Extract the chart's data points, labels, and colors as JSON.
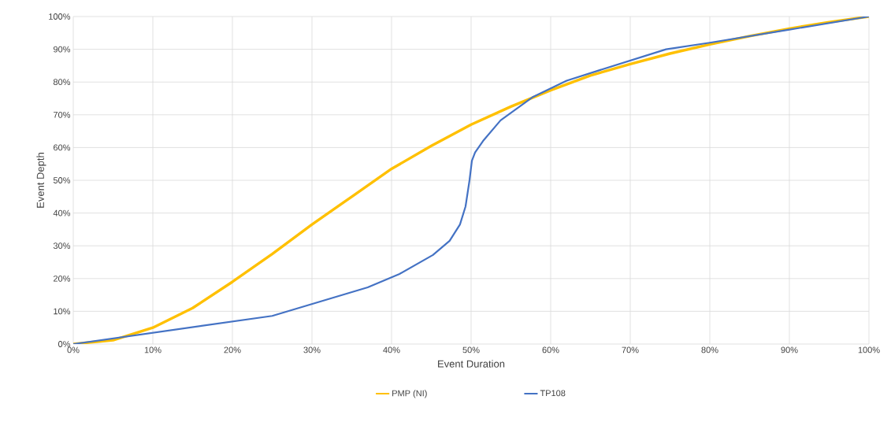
{
  "chart_data": {
    "type": "line",
    "xlabel": "Event Duration",
    "ylabel": "Event Depth",
    "xlim": [
      0,
      100
    ],
    "ylim": [
      0,
      100
    ],
    "xticks": [
      {
        "value": 0,
        "label": "0%"
      },
      {
        "value": 10,
        "label": "10%"
      },
      {
        "value": 20,
        "label": "20%"
      },
      {
        "value": 30,
        "label": "30%"
      },
      {
        "value": 40,
        "label": "40%"
      },
      {
        "value": 50,
        "label": "50%"
      },
      {
        "value": 60,
        "label": "60%"
      },
      {
        "value": 70,
        "label": "70%"
      },
      {
        "value": 80,
        "label": "80%"
      },
      {
        "value": 90,
        "label": "90%"
      },
      {
        "value": 100,
        "label": "100%"
      }
    ],
    "yticks": [
      {
        "value": 0,
        "label": "0%"
      },
      {
        "value": 10,
        "label": "10%"
      },
      {
        "value": 20,
        "label": "20%"
      },
      {
        "value": 30,
        "label": "30%"
      },
      {
        "value": 40,
        "label": "40%"
      },
      {
        "value": 50,
        "label": "50%"
      },
      {
        "value": 60,
        "label": "60%"
      },
      {
        "value": 70,
        "label": "70%"
      },
      {
        "value": 80,
        "label": "80%"
      },
      {
        "value": 90,
        "label": "90%"
      },
      {
        "value": 100,
        "label": "100%"
      }
    ],
    "grid": true,
    "legend": "bottom",
    "marker": "none",
    "line_style": "solid",
    "series": [
      {
        "name": "PMP (NI)",
        "color": "#ffc000",
        "x": [
          0,
          5,
          10,
          15,
          20,
          25,
          30,
          35,
          40,
          45,
          50,
          55,
          60,
          65,
          70,
          75,
          80,
          85,
          90,
          95,
          100
        ],
        "values": [
          0,
          1.2,
          5,
          11,
          19,
          27.5,
          36.5,
          45,
          53.5,
          60.5,
          67,
          72.5,
          77.5,
          82,
          85.5,
          88.7,
          91.5,
          94,
          96.3,
          98.3,
          100
        ]
      },
      {
        "name": "TP108",
        "color": "#4472c4",
        "x": [
          0,
          25,
          37,
          41,
          45.2,
          47.3,
          48.6,
          49.3,
          49.8,
          50.1,
          50.5,
          51.5,
          53.7,
          57.8,
          62,
          66,
          74.5,
          80,
          90,
          100
        ],
        "values": [
          0,
          8.6,
          17.3,
          21.4,
          27.2,
          31.5,
          36.5,
          42,
          50,
          56,
          58.5,
          62,
          68.3,
          75.5,
          80.4,
          83.5,
          90,
          92,
          96,
          100
        ]
      }
    ]
  }
}
